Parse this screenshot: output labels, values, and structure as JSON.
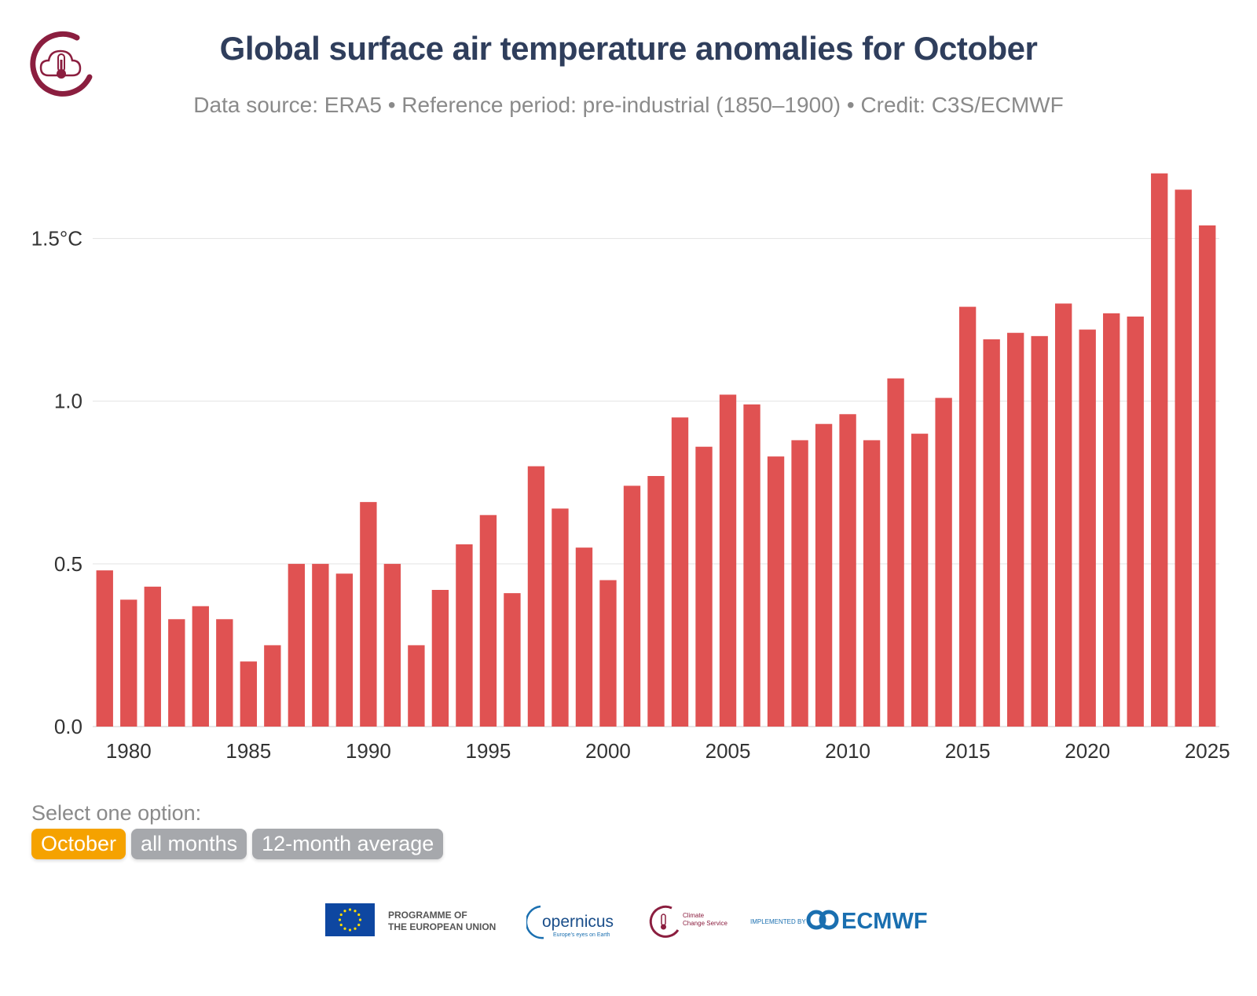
{
  "header": {
    "title": "Global surface air temperature anomalies for October",
    "subtitle": "Data source: ERA5 • Reference period: pre-industrial (1850–1900) • Credit: C3S/ECMWF"
  },
  "chart_data": {
    "type": "bar",
    "title": "Global surface air temperature anomalies for October",
    "xlabel": "",
    "ylabel": "",
    "ylim": [
      0,
      1.75
    ],
    "xlim": [
      1979,
      2025
    ],
    "grid": true,
    "color": "#e05252",
    "y_ticks": [
      {
        "value": 0.0,
        "label": "0.0"
      },
      {
        "value": 0.5,
        "label": "0.5"
      },
      {
        "value": 1.0,
        "label": "1.0"
      },
      {
        "value": 1.5,
        "label": "1.5°C"
      }
    ],
    "x_ticks": [
      1980,
      1985,
      1990,
      1995,
      2000,
      2005,
      2010,
      2015,
      2020,
      2025
    ],
    "categories": [
      1979,
      1980,
      1981,
      1982,
      1983,
      1984,
      1985,
      1986,
      1987,
      1988,
      1989,
      1990,
      1991,
      1992,
      1993,
      1994,
      1995,
      1996,
      1997,
      1998,
      1999,
      2000,
      2001,
      2002,
      2003,
      2004,
      2005,
      2006,
      2007,
      2008,
      2009,
      2010,
      2011,
      2012,
      2013,
      2014,
      2015,
      2016,
      2017,
      2018,
      2019,
      2020,
      2021,
      2022,
      2023,
      2024,
      2025
    ],
    "values": [
      0.48,
      0.39,
      0.43,
      0.33,
      0.37,
      0.33,
      0.2,
      0.25,
      0.5,
      0.5,
      0.47,
      0.69,
      0.5,
      0.25,
      0.42,
      0.56,
      0.65,
      0.41,
      0.8,
      0.67,
      0.55,
      0.45,
      0.74,
      0.77,
      0.95,
      0.86,
      1.02,
      0.99,
      0.83,
      0.88,
      0.93,
      0.96,
      0.88,
      1.07,
      0.9,
      1.01,
      1.29,
      1.19,
      1.21,
      1.2,
      1.3,
      1.22,
      1.27,
      1.26,
      1.7,
      1.65,
      1.54
    ]
  },
  "selector": {
    "label": "Select one option:",
    "options": [
      {
        "label": "October",
        "active": true
      },
      {
        "label": "all months",
        "active": false
      },
      {
        "label": "12-month average",
        "active": false
      }
    ],
    "active_color": "#f5a200",
    "inactive_color": "#a6a8ac"
  },
  "footer": {
    "eu_line1": "PROGRAMME OF",
    "eu_line2": "THE EUROPEAN UNION",
    "copernicus_name": "opernicus",
    "copernicus_tagline": "Europe's eyes on Earth",
    "c3s_line1": "Climate",
    "c3s_line2": "Change Service",
    "ecmwf_prefix": "IMPLEMENTED BY",
    "ecmwf_name": "ECMWF"
  },
  "colors": {
    "title": "#2f3e5c",
    "subtitle": "#8a8a8a",
    "bar": "#e05252",
    "brand": "#8b1e3f"
  }
}
